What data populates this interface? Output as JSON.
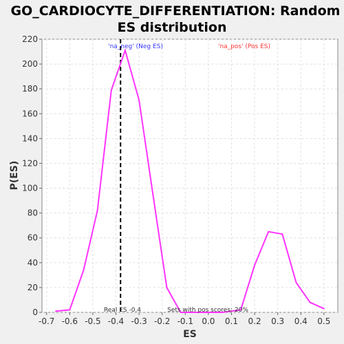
{
  "chart_data": {
    "type": "line",
    "title_line1": "GO_CARDIOCYTE_DIFFERENTIATION: Random",
    "title_line2": "ES distribution",
    "xlabel": "ES",
    "ylabel": "P(ES)",
    "xlim": [
      -0.72,
      0.56
    ],
    "ylim": [
      0,
      220
    ],
    "xticks": [
      -0.7,
      -0.6,
      -0.5,
      -0.4,
      -0.3,
      -0.2,
      -0.1,
      0.0,
      0.1,
      0.2,
      0.3,
      0.4,
      0.5
    ],
    "xtick_labels": [
      "-0.7",
      "-0.6",
      "-0.5",
      "-0.4",
      "-0.3",
      "-0.2",
      "-0.1",
      "0.0",
      "0.1",
      "0.2",
      "0.3",
      "0.4",
      "0.5"
    ],
    "yticks": [
      0,
      20,
      40,
      60,
      80,
      100,
      120,
      140,
      160,
      180,
      200,
      220
    ],
    "ytick_labels": [
      "0",
      "20",
      "40",
      "60",
      "80",
      "100",
      "120",
      "140",
      "160",
      "180",
      "200",
      "220"
    ],
    "grid": true,
    "series": [
      {
        "name": "P(ES)",
        "color": "#ff33ff",
        "x": [
          -0.66,
          -0.6,
          -0.54,
          -0.48,
          -0.42,
          -0.36,
          -0.3,
          -0.24,
          -0.18,
          -0.12,
          -0.06,
          0.0,
          0.06,
          0.14,
          0.2,
          0.26,
          0.32,
          0.38,
          0.44,
          0.5
        ],
        "y": [
          1,
          2,
          34,
          82,
          179,
          211,
          171,
          95,
          20,
          0,
          0,
          0,
          0,
          2,
          38,
          65,
          63,
          24,
          8,
          3
        ]
      }
    ],
    "real_es": -0.38,
    "real_es_color": "#000000",
    "annotations": {
      "neg_label": "'na_neg' (Neg ES)",
      "neg_color": "#3333ff",
      "pos_label": "'na_pos' (Pos ES)",
      "pos_color": "#ff3333",
      "real_es_text": "Real ES -0.4",
      "pos_scores_text": "Sets with pos scores: 20%"
    }
  }
}
